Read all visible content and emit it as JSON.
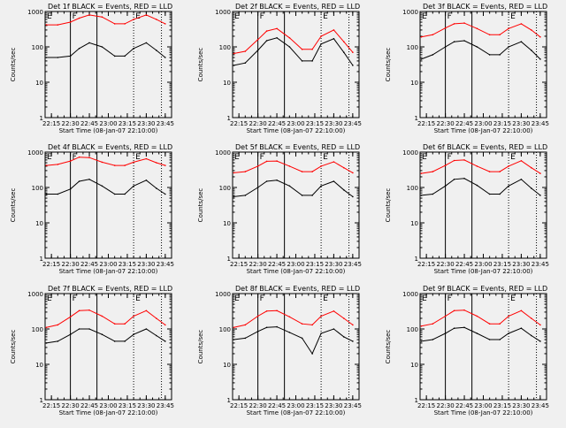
{
  "figure": {
    "xtick_labels": [
      "22:15",
      "22:30",
      "22:45",
      "23:00",
      "23:15",
      "23:30",
      "23:45"
    ],
    "ytick_labels": [
      "1",
      "10",
      "100",
      "1000"
    ],
    "xlabel": "Start Time (08-Jan-07 22:10:00)",
    "ylabel": "Counts/sec",
    "marker_left": "F",
    "marker_right": "E",
    "colors": {
      "background": "#f0f0f0",
      "axes": "#000000",
      "events": "#000000",
      "lld": "#ff0000"
    }
  },
  "chart_data": [
    {
      "type": "line",
      "title": "Det 1f BLACK = Events, RED = LLD",
      "xlabel": "Start Time (08-Jan-07 22:10:00)",
      "ylabel": "Counts/sec",
      "yscale": "log",
      "ylim": [
        1,
        1000
      ],
      "x_range": [
        "22:10",
        "23:50"
      ],
      "vlines": [
        {
          "x": "22:30",
          "style": "solid"
        },
        {
          "x": "22:51",
          "style": "solid"
        },
        {
          "x": "23:20",
          "style": "dotted"
        },
        {
          "x": "23:42",
          "style": "dotted"
        }
      ],
      "series": [
        {
          "color": "#000000",
          "x": [
            "22:11",
            "22:20",
            "22:30",
            "22:37",
            "22:45",
            "22:55",
            "23:05",
            "23:13",
            "23:20",
            "23:30",
            "23:38",
            "23:45"
          ],
          "values": [
            50,
            50,
            55,
            90,
            130,
            100,
            55,
            55,
            90,
            130,
            80,
            50
          ]
        },
        {
          "color": "#ff0000",
          "x": [
            "22:11",
            "22:20",
            "22:30",
            "22:37",
            "22:45",
            "22:55",
            "23:05",
            "23:13",
            "23:20",
            "23:30",
            "23:38",
            "23:45"
          ],
          "values": [
            420,
            420,
            500,
            650,
            800,
            700,
            450,
            450,
            600,
            800,
            600,
            450
          ]
        }
      ]
    },
    {
      "type": "line",
      "title": "Det 2f BLACK = Events, RED = LLD",
      "xlabel": "Start Time (08-Jan-07 22:10:00)",
      "ylabel": "Counts/sec",
      "yscale": "log",
      "ylim": [
        1,
        1000
      ],
      "x_range": [
        "22:10",
        "23:50"
      ],
      "vlines": [
        {
          "x": "22:30",
          "style": "solid"
        },
        {
          "x": "22:51",
          "style": "solid"
        },
        {
          "x": "23:20",
          "style": "dotted"
        },
        {
          "x": "23:42",
          "style": "dotted"
        }
      ],
      "series": [
        {
          "color": "#000000",
          "x": [
            "22:11",
            "22:20",
            "22:30",
            "22:37",
            "22:45",
            "22:55",
            "23:05",
            "23:13",
            "23:20",
            "23:30",
            "23:38",
            "23:45"
          ],
          "values": [
            30,
            35,
            80,
            150,
            180,
            100,
            40,
            40,
            120,
            170,
            70,
            30
          ]
        },
        {
          "color": "#ff0000",
          "x": [
            "22:11",
            "22:20",
            "22:30",
            "22:37",
            "22:45",
            "22:55",
            "23:05",
            "23:13",
            "23:20",
            "23:30",
            "23:38",
            "23:45"
          ],
          "values": [
            65,
            75,
            160,
            280,
            330,
            180,
            85,
            85,
            200,
            300,
            140,
            70
          ]
        }
      ]
    },
    {
      "type": "line",
      "title": "Det 3f BLACK = Events, RED = LLD",
      "xlabel": "Start Time (08-Jan-07 22:10:00)",
      "ylabel": "Counts/sec",
      "yscale": "log",
      "ylim": [
        1,
        1000
      ],
      "x_range": [
        "22:10",
        "23:50"
      ],
      "vlines": [
        {
          "x": "22:30",
          "style": "solid"
        },
        {
          "x": "22:51",
          "style": "solid"
        },
        {
          "x": "23:20",
          "style": "dotted"
        },
        {
          "x": "23:42",
          "style": "dotted"
        }
      ],
      "series": [
        {
          "color": "#000000",
          "x": [
            "22:11",
            "22:20",
            "22:30",
            "22:37",
            "22:45",
            "22:55",
            "23:05",
            "23:13",
            "23:20",
            "23:30",
            "23:38",
            "23:45"
          ],
          "values": [
            45,
            60,
            100,
            140,
            150,
            100,
            60,
            60,
            100,
            140,
            80,
            45
          ]
        },
        {
          "color": "#ff0000",
          "x": [
            "22:11",
            "22:20",
            "22:30",
            "22:37",
            "22:45",
            "22:55",
            "23:05",
            "23:13",
            "23:20",
            "23:30",
            "23:38",
            "23:45"
          ],
          "values": [
            190,
            220,
            340,
            450,
            470,
            330,
            220,
            220,
            330,
            450,
            300,
            190
          ]
        }
      ]
    },
    {
      "type": "line",
      "title": "Det 4f BLACK = Events, RED = LLD",
      "xlabel": "Start Time (08-Jan-07 22:10:00)",
      "ylabel": "Counts/sec",
      "yscale": "log",
      "ylim": [
        1,
        1000
      ],
      "x_range": [
        "22:10",
        "23:50"
      ],
      "vlines": [
        {
          "x": "22:30",
          "style": "solid"
        },
        {
          "x": "22:51",
          "style": "solid"
        },
        {
          "x": "23:20",
          "style": "dotted"
        },
        {
          "x": "23:42",
          "style": "dotted"
        }
      ],
      "series": [
        {
          "color": "#000000",
          "x": [
            "22:11",
            "22:20",
            "22:30",
            "22:37",
            "22:45",
            "22:55",
            "23:05",
            "23:13",
            "23:20",
            "23:30",
            "23:38",
            "23:45"
          ],
          "values": [
            65,
            65,
            90,
            150,
            170,
            110,
            65,
            65,
            110,
            160,
            95,
            65
          ]
        },
        {
          "color": "#ff0000",
          "x": [
            "22:11",
            "22:20",
            "22:30",
            "22:37",
            "22:45",
            "22:55",
            "23:05",
            "23:13",
            "23:20",
            "23:30",
            "23:38",
            "23:45"
          ],
          "values": [
            420,
            450,
            560,
            720,
            700,
            520,
            420,
            420,
            520,
            650,
            500,
            420
          ]
        }
      ]
    },
    {
      "type": "line",
      "title": "Det 5f BLACK = Events, RED = LLD",
      "xlabel": "Start Time (08-Jan-07 22:10:00)",
      "ylabel": "Counts/sec",
      "yscale": "log",
      "ylim": [
        1,
        1000
      ],
      "x_range": [
        "22:10",
        "23:50"
      ],
      "vlines": [
        {
          "x": "22:30",
          "style": "solid"
        },
        {
          "x": "22:51",
          "style": "solid"
        },
        {
          "x": "23:20",
          "style": "dotted"
        },
        {
          "x": "23:42",
          "style": "dotted"
        }
      ],
      "series": [
        {
          "color": "#000000",
          "x": [
            "22:11",
            "22:20",
            "22:30",
            "22:37",
            "22:45",
            "22:55",
            "23:05",
            "23:13",
            "23:20",
            "23:30",
            "23:38",
            "23:45"
          ],
          "values": [
            55,
            60,
            100,
            150,
            160,
            110,
            60,
            60,
            110,
            150,
            85,
            55
          ]
        },
        {
          "color": "#ff0000",
          "x": [
            "22:11",
            "22:20",
            "22:30",
            "22:37",
            "22:45",
            "22:55",
            "23:05",
            "23:13",
            "23:20",
            "23:30",
            "23:38",
            "23:45"
          ],
          "values": [
            260,
            280,
            400,
            550,
            560,
            400,
            280,
            280,
            400,
            530,
            360,
            260
          ]
        }
      ]
    },
    {
      "type": "line",
      "title": "Det 6f BLACK = Events, RED = LLD",
      "xlabel": "Start Time (08-Jan-07 22:10:00)",
      "ylabel": "Counts/sec",
      "yscale": "log",
      "ylim": [
        1,
        1000
      ],
      "x_range": [
        "22:10",
        "23:50"
      ],
      "vlines": [
        {
          "x": "22:30",
          "style": "solid"
        },
        {
          "x": "22:51",
          "style": "solid"
        },
        {
          "x": "23:20",
          "style": "dotted"
        },
        {
          "x": "23:42",
          "style": "dotted"
        }
      ],
      "series": [
        {
          "color": "#000000",
          "x": [
            "22:11",
            "22:20",
            "22:30",
            "22:37",
            "22:45",
            "22:55",
            "23:05",
            "23:13",
            "23:20",
            "23:30",
            "23:38",
            "23:45"
          ],
          "values": [
            60,
            65,
            110,
            170,
            180,
            115,
            65,
            65,
            110,
            170,
            95,
            60
          ]
        },
        {
          "color": "#ff0000",
          "x": [
            "22:11",
            "22:20",
            "22:30",
            "22:37",
            "22:45",
            "22:55",
            "23:05",
            "23:13",
            "23:20",
            "23:30",
            "23:38",
            "23:45"
          ],
          "values": [
            250,
            280,
            420,
            580,
            600,
            400,
            280,
            280,
            400,
            570,
            360,
            250
          ]
        }
      ]
    },
    {
      "type": "line",
      "title": "Det 7f BLACK = Events, RED = LLD",
      "xlabel": "Start Time (08-Jan-07 22:10:00)",
      "ylabel": "Counts/sec",
      "yscale": "log",
      "ylim": [
        1,
        1000
      ],
      "x_range": [
        "22:10",
        "23:50"
      ],
      "vlines": [
        {
          "x": "22:30",
          "style": "solid"
        },
        {
          "x": "22:51",
          "style": "solid"
        },
        {
          "x": "23:20",
          "style": "dotted"
        },
        {
          "x": "23:42",
          "style": "dotted"
        }
      ],
      "series": [
        {
          "color": "#000000",
          "x": [
            "22:11",
            "22:20",
            "22:30",
            "22:37",
            "22:45",
            "22:55",
            "23:05",
            "23:13",
            "23:20",
            "23:30",
            "23:38",
            "23:45"
          ],
          "values": [
            40,
            45,
            70,
            100,
            100,
            70,
            45,
            45,
            70,
            100,
            65,
            45
          ]
        },
        {
          "color": "#ff0000",
          "x": [
            "22:11",
            "22:20",
            "22:30",
            "22:37",
            "22:45",
            "22:55",
            "23:05",
            "23:13",
            "23:20",
            "23:30",
            "23:38",
            "23:45"
          ],
          "values": [
            110,
            130,
            220,
            330,
            340,
            230,
            140,
            140,
            230,
            330,
            200,
            130
          ]
        }
      ]
    },
    {
      "type": "line",
      "title": "Det 8f BLACK = Events, RED = LLD",
      "xlabel": "Start Time (08-Jan-07 22:10:00)",
      "ylabel": "Counts/sec",
      "yscale": "log",
      "ylim": [
        1,
        1000
      ],
      "x_range": [
        "22:10",
        "23:50"
      ],
      "vlines": [
        {
          "x": "22:30",
          "style": "solid"
        },
        {
          "x": "22:51",
          "style": "solid"
        },
        {
          "x": "23:20",
          "style": "dotted"
        },
        {
          "x": "23:42",
          "style": "dotted"
        }
      ],
      "series": [
        {
          "color": "#000000",
          "x": [
            "22:11",
            "22:20",
            "22:30",
            "22:37",
            "22:45",
            "22:55",
            "23:05",
            "23:13",
            "23:20",
            "23:30",
            "23:38",
            "23:45"
          ],
          "values": [
            50,
            55,
            85,
            110,
            115,
            80,
            55,
            20,
            75,
            100,
            60,
            45
          ]
        },
        {
          "color": "#ff0000",
          "x": [
            "22:11",
            "22:20",
            "22:30",
            "22:37",
            "22:45",
            "22:55",
            "23:05",
            "23:13",
            "23:20",
            "23:30",
            "23:38",
            "23:45"
          ],
          "values": [
            110,
            130,
            230,
            320,
            330,
            220,
            140,
            130,
            230,
            320,
            200,
            130
          ]
        }
      ]
    },
    {
      "type": "line",
      "title": "Det 9f BLACK = Events, RED = LLD",
      "xlabel": "Start Time (08-Jan-07 22:10:00)",
      "ylabel": "Counts/sec",
      "yscale": "log",
      "ylim": [
        1,
        1000
      ],
      "x_range": [
        "22:10",
        "23:50"
      ],
      "vlines": [
        {
          "x": "22:30",
          "style": "solid"
        },
        {
          "x": "22:51",
          "style": "solid"
        },
        {
          "x": "23:20",
          "style": "dotted"
        },
        {
          "x": "23:42",
          "style": "dotted"
        }
      ],
      "series": [
        {
          "color": "#000000",
          "x": [
            "22:11",
            "22:20",
            "22:30",
            "22:37",
            "22:45",
            "22:55",
            "23:05",
            "23:13",
            "23:20",
            "23:30",
            "23:38",
            "23:45"
          ],
          "values": [
            45,
            50,
            75,
            105,
            110,
            75,
            50,
            50,
            75,
            105,
            65,
            45
          ]
        },
        {
          "color": "#ff0000",
          "x": [
            "22:11",
            "22:20",
            "22:30",
            "22:37",
            "22:45",
            "22:55",
            "23:05",
            "23:13",
            "23:20",
            "23:30",
            "23:38",
            "23:45"
          ],
          "values": [
            120,
            140,
            230,
            330,
            340,
            230,
            140,
            140,
            230,
            330,
            200,
            130
          ]
        }
      ]
    }
  ]
}
